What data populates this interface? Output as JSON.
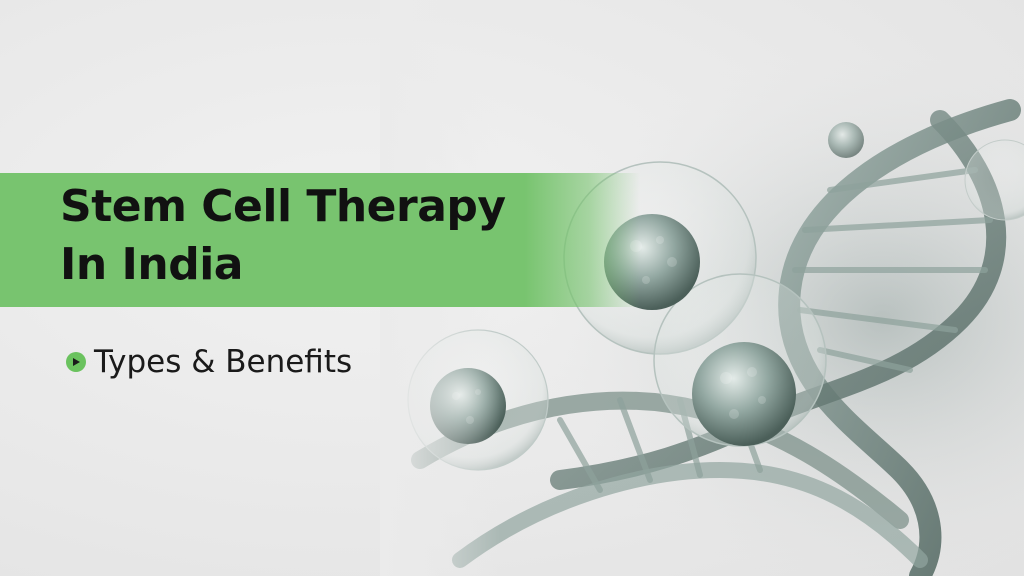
{
  "hero": {
    "title_line_1": "Stem Cell Therapy",
    "title_line_2": "In India",
    "subtitle": "Types & Benefits"
  },
  "colors": {
    "banner_green": "#78c46f",
    "bullet_green": "#6ac25e",
    "title_text": "#111111",
    "background": "#ebebeb"
  },
  "icons": {
    "bullet": "play-bullet-icon"
  }
}
